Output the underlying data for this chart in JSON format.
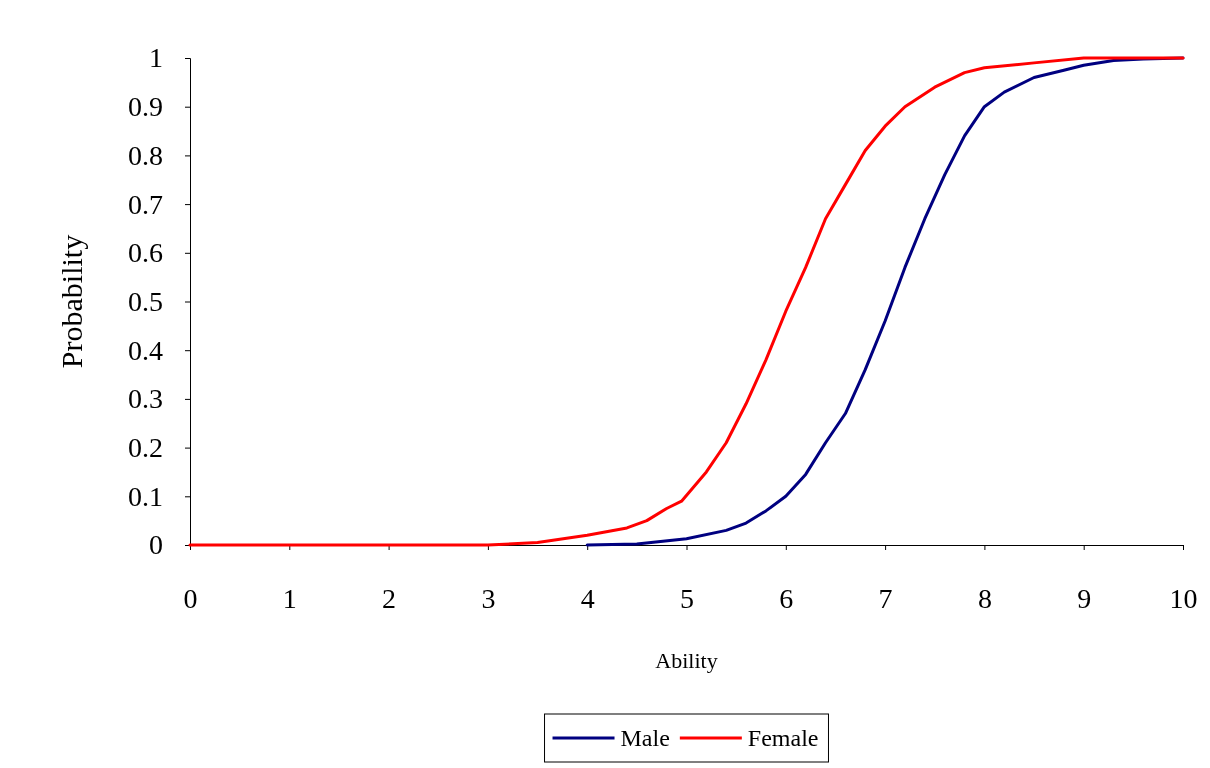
{
  "chart_data": {
    "type": "line",
    "xlabel": "Ability",
    "ylabel": "Probability",
    "xlim": [
      0,
      10
    ],
    "ylim": [
      0,
      1
    ],
    "xticks": [
      0,
      1,
      2,
      3,
      4,
      5,
      6,
      7,
      8,
      9,
      10
    ],
    "yticks": [
      0,
      0.1,
      0.2,
      0.3,
      0.4,
      0.5,
      0.6,
      0.7,
      0.8,
      0.9,
      1
    ],
    "legend": "bottom",
    "grid": false,
    "marker": "none",
    "line_style": "solid",
    "series": [
      {
        "name": "Male",
        "color": "#000080",
        "x": [
          4,
          4.5,
          5,
          5.4,
          5.6,
          5.8,
          6,
          6.2,
          6.4,
          6.6,
          6.8,
          7,
          7.2,
          7.4,
          7.6,
          7.8,
          8,
          8.2,
          8.5,
          8.8,
          9,
          9.3,
          9.6,
          10
        ],
        "values": [
          0,
          0.002,
          0.013,
          0.03,
          0.045,
          0.07,
          0.1,
          0.145,
          0.21,
          0.27,
          0.36,
          0.46,
          0.57,
          0.67,
          0.76,
          0.84,
          0.9,
          0.93,
          0.96,
          0.975,
          0.985,
          0.995,
          0.998,
          1
        ]
      },
      {
        "name": "Female",
        "color": "#ff0000",
        "x": [
          0,
          1,
          2,
          3,
          3.5,
          4,
          4.4,
          4.6,
          4.8,
          4.95,
          5.2,
          5.4,
          5.6,
          5.8,
          6,
          6.2,
          6.4,
          6.6,
          6.8,
          7,
          7.2,
          7.5,
          7.8,
          8,
          8.5,
          9,
          9.5,
          10
        ],
        "values": [
          0,
          0,
          0,
          0,
          0.005,
          0.02,
          0.035,
          0.05,
          0.075,
          0.09,
          0.15,
          0.21,
          0.29,
          0.38,
          0.48,
          0.57,
          0.67,
          0.74,
          0.81,
          0.86,
          0.9,
          0.94,
          0.97,
          0.98,
          0.99,
          1,
          1,
          1
        ]
      }
    ]
  }
}
